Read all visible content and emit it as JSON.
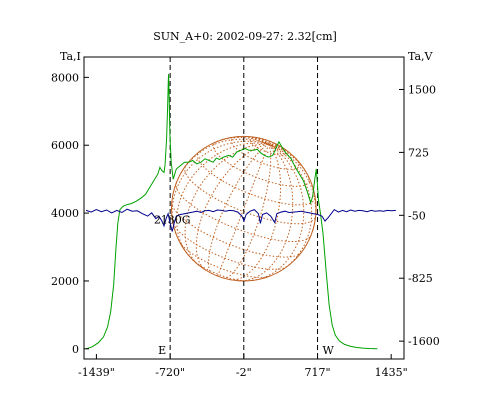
{
  "chart_data": {
    "type": "line",
    "title": "SUN_A+0: 2002-09-27: 2.32[cm]",
    "left_axis": {
      "label": "Ta,I",
      "range": [
        -300,
        8600
      ],
      "ticks": [
        "0",
        "2000",
        "4000",
        "6000",
        "8000"
      ],
      "tick_values": [
        0,
        2000,
        4000,
        6000,
        8000
      ]
    },
    "right_axis": {
      "label": "Ta,V",
      "range": [
        -1820,
        1900
      ],
      "ticks": [
        "1500",
        "725",
        "-50",
        "-825",
        "-1600"
      ],
      "tick_values": [
        1500,
        725,
        -50,
        -825,
        -1600
      ]
    },
    "x_axis": {
      "range": [
        -1560,
        1560
      ],
      "ticks": [
        "-1439\"",
        "-720\"",
        "-2\"",
        "717\"",
        "1435\""
      ],
      "tick_values": [
        -1439,
        -720,
        -2,
        717,
        1435
      ]
    },
    "grid": false,
    "vlines": [
      {
        "x": -720,
        "label": "E"
      },
      {
        "x": -2,
        "label": ""
      },
      {
        "x": 717,
        "label": "W"
      }
    ],
    "annotations": [
      {
        "text": "2130G",
        "x": -700,
        "y": 3700
      }
    ],
    "solar_disk": {
      "center_x": -2,
      "center_y": 4130,
      "radius_arcsec": 705,
      "color": "#c06020"
    },
    "series": [
      {
        "axis": "left",
        "color": "#00a000",
        "points": [
          [
            -1540,
            0
          ],
          [
            -1480,
            60
          ],
          [
            -1420,
            180
          ],
          [
            -1370,
            350
          ],
          [
            -1330,
            650
          ],
          [
            -1300,
            1100
          ],
          [
            -1270,
            1900
          ],
          [
            -1250,
            2900
          ],
          [
            -1230,
            3700
          ],
          [
            -1210,
            4100
          ],
          [
            -1180,
            4200
          ],
          [
            -1140,
            4250
          ],
          [
            -1100,
            4280
          ],
          [
            -1050,
            4350
          ],
          [
            -1000,
            4450
          ],
          [
            -960,
            4550
          ],
          [
            -920,
            4750
          ],
          [
            -880,
            4950
          ],
          [
            -840,
            5150
          ],
          [
            -820,
            5350
          ],
          [
            -800,
            5250
          ],
          [
            -780,
            5200
          ],
          [
            -770,
            5400
          ],
          [
            -755,
            6200
          ],
          [
            -745,
            7100
          ],
          [
            -738,
            7900
          ],
          [
            -735,
            8100
          ],
          [
            -730,
            7500
          ],
          [
            -722,
            6300
          ],
          [
            -710,
            5500
          ],
          [
            -690,
            5000
          ],
          [
            -660,
            5300
          ],
          [
            -620,
            5400
          ],
          [
            -580,
            5500
          ],
          [
            -540,
            5500
          ],
          [
            -500,
            5550
          ],
          [
            -460,
            5450
          ],
          [
            -420,
            5500
          ],
          [
            -380,
            5600
          ],
          [
            -340,
            5550
          ],
          [
            -300,
            5500
          ],
          [
            -270,
            5620
          ],
          [
            -240,
            5580
          ],
          [
            -200,
            5650
          ],
          [
            -150,
            5700
          ],
          [
            -110,
            5650
          ],
          [
            -70,
            5800
          ],
          [
            -30,
            5850
          ],
          [
            10,
            5900
          ],
          [
            50,
            5850
          ],
          [
            90,
            5850
          ],
          [
            130,
            5880
          ],
          [
            160,
            5780
          ],
          [
            200,
            5700
          ],
          [
            240,
            5650
          ],
          [
            280,
            5700
          ],
          [
            310,
            5900
          ],
          [
            340,
            6100
          ],
          [
            370,
            5950
          ],
          [
            400,
            5800
          ],
          [
            430,
            5700
          ],
          [
            460,
            5600
          ],
          [
            500,
            5350
          ],
          [
            540,
            5150
          ],
          [
            580,
            4950
          ],
          [
            620,
            4600
          ],
          [
            650,
            4300
          ],
          [
            670,
            4500
          ],
          [
            690,
            5000
          ],
          [
            705,
            5300
          ],
          [
            715,
            4900
          ],
          [
            725,
            4400
          ],
          [
            745,
            4000
          ],
          [
            770,
            3400
          ],
          [
            800,
            2300
          ],
          [
            830,
            1300
          ],
          [
            860,
            700
          ],
          [
            890,
            400
          ],
          [
            930,
            230
          ],
          [
            980,
            130
          ],
          [
            1040,
            70
          ],
          [
            1100,
            40
          ],
          [
            1160,
            20
          ],
          [
            1220,
            10
          ],
          [
            1300,
            0
          ]
        ]
      },
      {
        "axis": "right",
        "color": "#00008b",
        "points": [
          [
            -1540,
            10
          ],
          [
            -1490,
            -10
          ],
          [
            -1440,
            20
          ],
          [
            -1390,
            -5
          ],
          [
            -1340,
            15
          ],
          [
            -1290,
            -20
          ],
          [
            -1240,
            10
          ],
          [
            -1190,
            -15
          ],
          [
            -1140,
            25
          ],
          [
            -1090,
            0
          ],
          [
            -1040,
            5
          ],
          [
            -990,
            -30
          ],
          [
            -940,
            -60
          ],
          [
            -900,
            -20
          ],
          [
            -860,
            -90
          ],
          [
            -830,
            -60
          ],
          [
            -800,
            -120
          ],
          [
            -780,
            -180
          ],
          [
            -760,
            -90
          ],
          [
            -740,
            -30
          ],
          [
            -720,
            -150
          ],
          [
            -700,
            -250
          ],
          [
            -680,
            -140
          ],
          [
            -660,
            -60
          ],
          [
            -620,
            -40
          ],
          [
            -580,
            -30
          ],
          [
            -540,
            -20
          ],
          [
            -500,
            -10
          ],
          [
            -460,
            0
          ],
          [
            -420,
            -15
          ],
          [
            -380,
            5
          ],
          [
            -340,
            10
          ],
          [
            -300,
            -5
          ],
          [
            -260,
            15
          ],
          [
            -220,
            10
          ],
          [
            -180,
            0
          ],
          [
            -140,
            10
          ],
          [
            -100,
            5
          ],
          [
            -60,
            -10
          ],
          [
            -20,
            -60
          ],
          [
            0,
            -120
          ],
          [
            20,
            -40
          ],
          [
            60,
            0
          ],
          [
            100,
            20
          ],
          [
            140,
            -30
          ],
          [
            160,
            -150
          ],
          [
            180,
            -40
          ],
          [
            220,
            -20
          ],
          [
            260,
            -60
          ],
          [
            300,
            -140
          ],
          [
            320,
            -30
          ],
          [
            360,
            -10
          ],
          [
            400,
            0
          ],
          [
            440,
            -15
          ],
          [
            480,
            -10
          ],
          [
            520,
            -5
          ],
          [
            560,
            0
          ],
          [
            600,
            -10
          ],
          [
            640,
            -20
          ],
          [
            680,
            -30
          ],
          [
            720,
            -40
          ],
          [
            760,
            -60
          ],
          [
            790,
            -120
          ],
          [
            820,
            -80
          ],
          [
            850,
            -30
          ],
          [
            880,
            20
          ],
          [
            920,
            -10
          ],
          [
            960,
            10
          ],
          [
            1000,
            -5
          ],
          [
            1040,
            15
          ],
          [
            1080,
            0
          ],
          [
            1120,
            10
          ],
          [
            1160,
            5
          ],
          [
            1200,
            -5
          ],
          [
            1240,
            10
          ],
          [
            1280,
            0
          ],
          [
            1320,
            5
          ],
          [
            1360,
            0
          ],
          [
            1400,
            10
          ],
          [
            1440,
            5
          ],
          [
            1480,
            10
          ]
        ]
      }
    ]
  }
}
